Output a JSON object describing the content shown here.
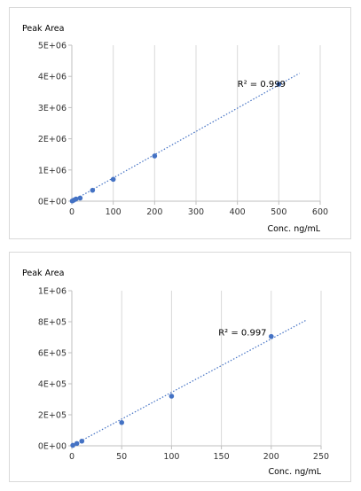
{
  "chart_data": [
    {
      "type": "scatter",
      "ylabel": "Peak Area",
      "xlabel": "Conc. ng/mL",
      "xlim": [
        0,
        600
      ],
      "ylim": [
        0,
        5000000
      ],
      "xticks": [
        0,
        100,
        200,
        300,
        400,
        500,
        600
      ],
      "xtick_labels": [
        "0",
        "100",
        "200",
        "300",
        "400",
        "500",
        "600"
      ],
      "yticks": [
        0,
        1000000,
        2000000,
        3000000,
        4000000,
        5000000
      ],
      "ytick_labels": [
        "0E+00",
        "1E+06",
        "2E+06",
        "3E+06",
        "4E+06",
        "5E+06"
      ],
      "grid": "vertical",
      "points": [
        {
          "x": 1,
          "y": 7000
        },
        {
          "x": 5,
          "y": 35000
        },
        {
          "x": 10,
          "y": 70000
        },
        {
          "x": 20,
          "y": 100000
        },
        {
          "x": 50,
          "y": 350000
        },
        {
          "x": 100,
          "y": 700000
        },
        {
          "x": 200,
          "y": 1450000
        },
        {
          "x": 500,
          "y": 3750000
        }
      ],
      "trendline": {
        "x": [
          0,
          550
        ],
        "y": [
          0,
          4100000
        ],
        "style": "dotted"
      },
      "annotation": {
        "text": "R² = 0.999",
        "x": 400,
        "y": 3750000
      },
      "point_color": "#4472C4"
    },
    {
      "type": "scatter",
      "ylabel": "Peak Area",
      "xlabel": "Conc. ng/mL",
      "xlim": [
        0,
        250
      ],
      "ylim": [
        0,
        1000000
      ],
      "xticks": [
        0,
        50,
        100,
        150,
        200,
        250
      ],
      "xtick_labels": [
        "0",
        "50",
        "100",
        "150",
        "200",
        "250"
      ],
      "yticks": [
        0,
        200000,
        400000,
        600000,
        800000,
        1000000
      ],
      "ytick_labels": [
        "0E+00",
        "2E+05",
        "4E+05",
        "6E+05",
        "8E+05",
        "1E+06"
      ],
      "grid": "vertical",
      "points": [
        {
          "x": 1,
          "y": 3000
        },
        {
          "x": 5,
          "y": 15000
        },
        {
          "x": 10,
          "y": 30000
        },
        {
          "x": 50,
          "y": 150000
        },
        {
          "x": 100,
          "y": 320000
        },
        {
          "x": 200,
          "y": 705000
        }
      ],
      "trendline": {
        "x": [
          0,
          235
        ],
        "y": [
          0,
          810000
        ],
        "style": "dotted"
      },
      "annotation": {
        "text": "R² = 0.997",
        "x": 147,
        "y": 730000
      },
      "point_color": "#4472C4"
    }
  ]
}
